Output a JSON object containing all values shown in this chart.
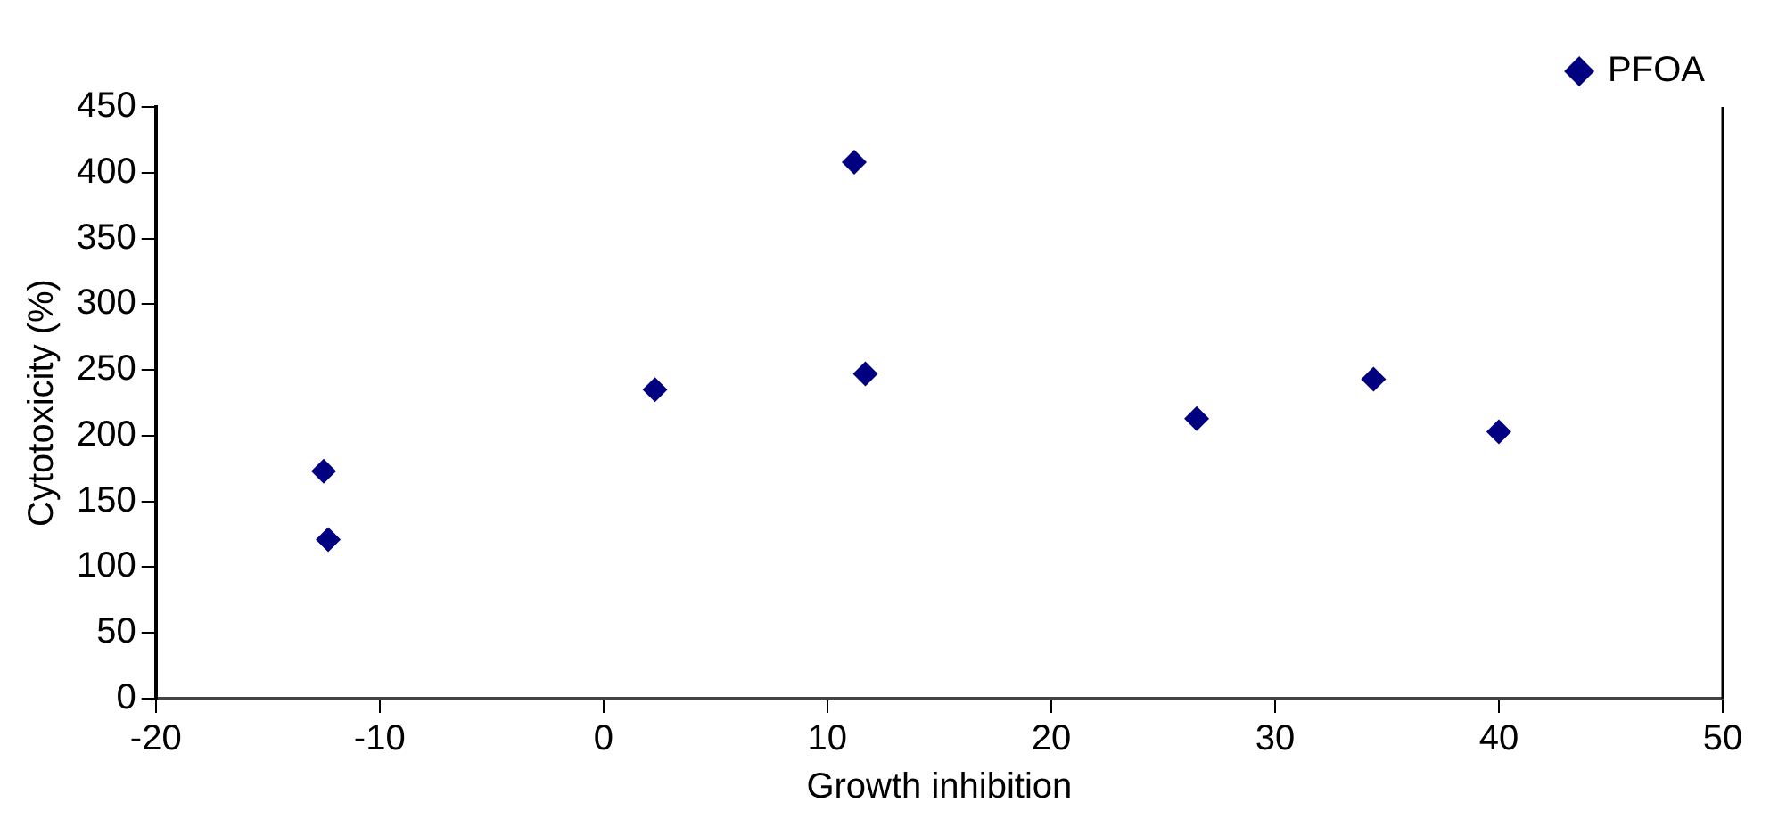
{
  "chart_data": {
    "type": "scatter",
    "xlabel": "Growth inhibition",
    "ylabel": "Cytotoxicity (%)",
    "x": [
      -12.5,
      -12.3,
      2.3,
      11.2,
      11.7,
      26.5,
      34.4,
      40
    ],
    "series": [
      {
        "name": "PFOA",
        "color": "#000080",
        "values": [
          173,
          121,
          235,
          408,
          247,
          213,
          243,
          203
        ]
      }
    ],
    "xlim": [
      -20,
      50
    ],
    "xticks": [
      -20,
      -10,
      0,
      10,
      20,
      30,
      40,
      50
    ],
    "ylim": [
      0,
      450
    ],
    "yticks": [
      0,
      50,
      100,
      150,
      200,
      250,
      300,
      350,
      400,
      450
    ],
    "grid": false,
    "legend": "top right",
    "marker": "diamond"
  }
}
